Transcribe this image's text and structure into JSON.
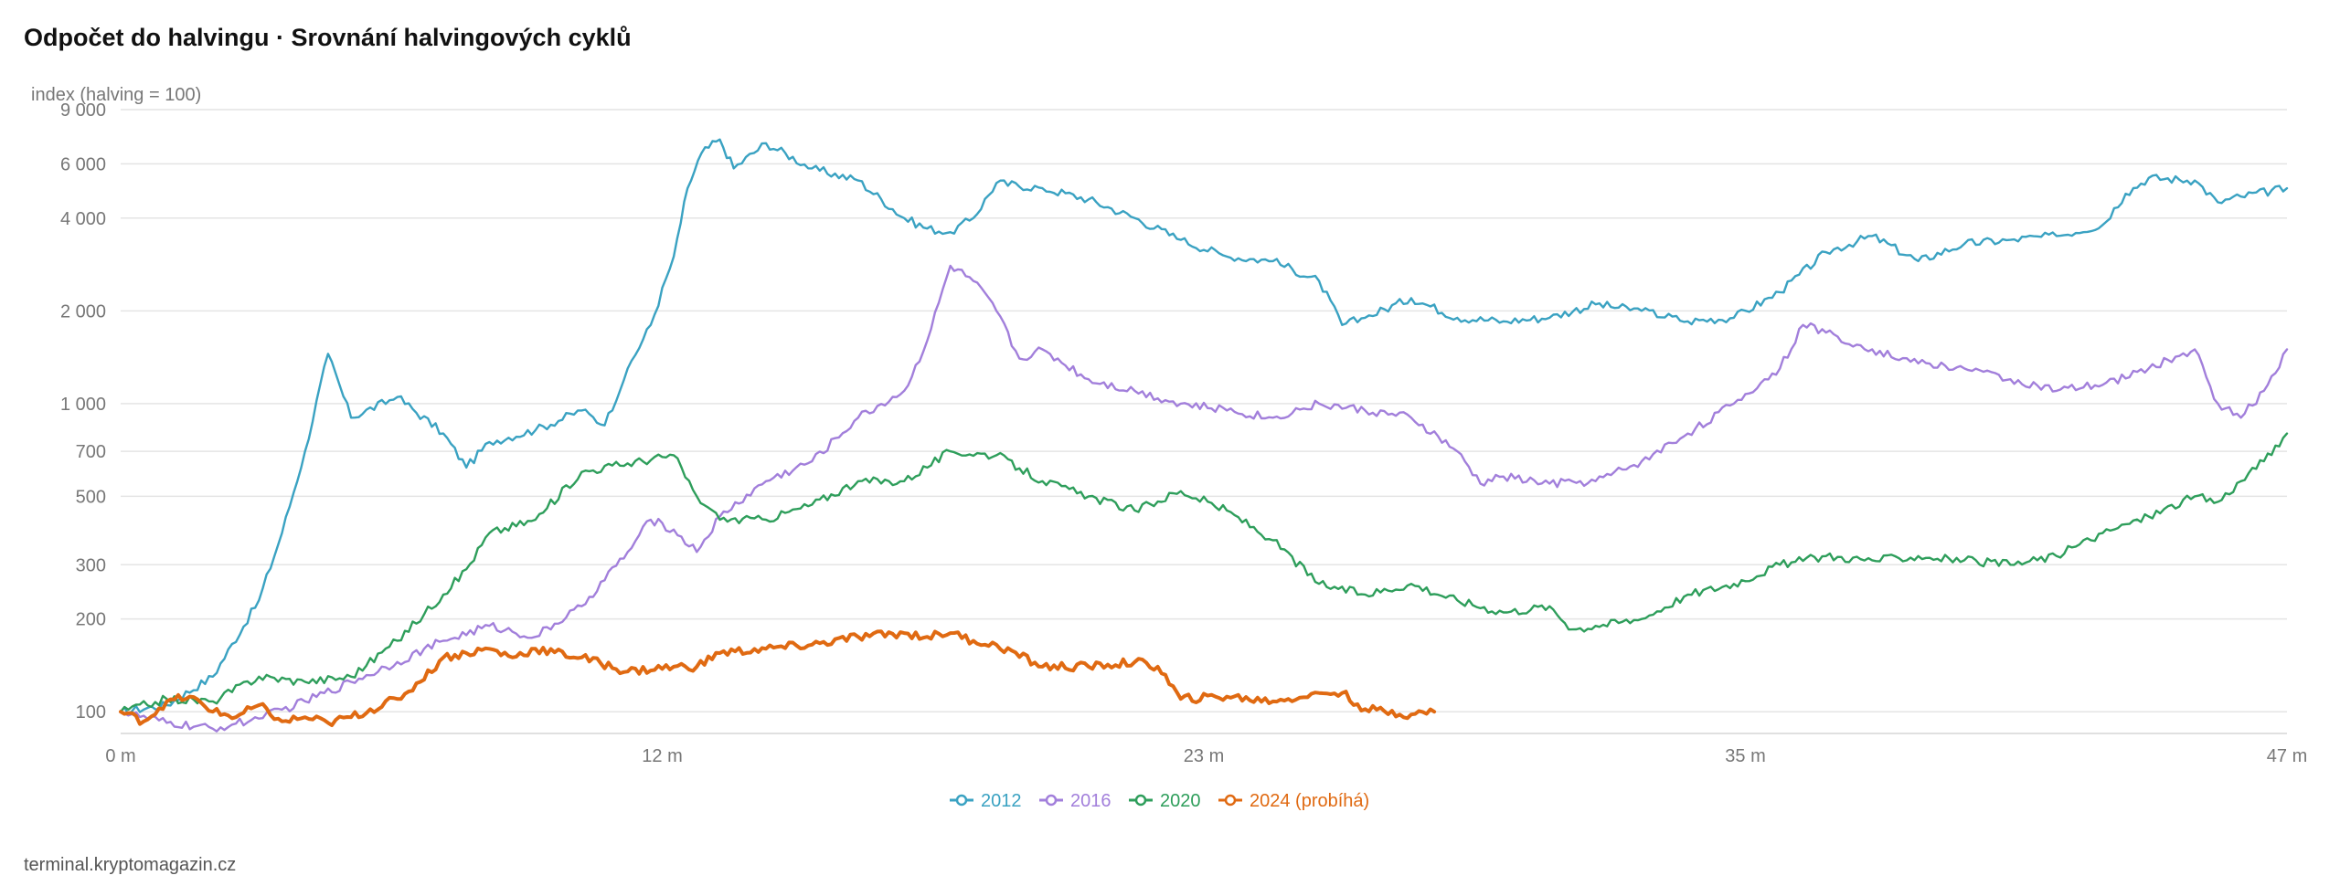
{
  "header": {
    "title": "Odpočet do halvingu · Srovnání halvingových cyklů"
  },
  "footer": {
    "source": "terminal.kryptomagazin.cz"
  },
  "colors": {
    "s2012": "#3aa2c2",
    "s2016": "#a27fdb",
    "s2020": "#2e9e5b",
    "s2024": "#e06a12"
  },
  "chart_data": {
    "type": "line",
    "title": "Odpočet do halvingu · Srovnání halvingových cyklů",
    "ylabel": "index (halving = 100)",
    "xlabel": "",
    "yscale": "log",
    "ylim": [
      85,
      9000
    ],
    "xlim": [
      0,
      47
    ],
    "y_ticks": [
      {
        "value": 9000,
        "label": "9 000"
      },
      {
        "value": 6000,
        "label": "6 000"
      },
      {
        "value": 4000,
        "label": "4 000"
      },
      {
        "value": 2000,
        "label": "2 000"
      },
      {
        "value": 1000,
        "label": "1 000"
      },
      {
        "value": 700,
        "label": "700"
      },
      {
        "value": 500,
        "label": "500"
      },
      {
        "value": 300,
        "label": "300"
      },
      {
        "value": 200,
        "label": "200"
      },
      {
        "value": 100,
        "label": "100"
      }
    ],
    "x_ticks": [
      {
        "value": 0,
        "label": "0 m"
      },
      {
        "value": 11.75,
        "label": "12 m"
      },
      {
        "value": 23.5,
        "label": "23 m"
      },
      {
        "value": 35.25,
        "label": "35 m"
      },
      {
        "value": 47,
        "label": "47 m"
      }
    ],
    "grid": true,
    "legend_position": "bottom-center",
    "series": [
      {
        "name": "2012",
        "color": "#3aa2c2",
        "points": [
          [
            0,
            100
          ],
          [
            1,
            105
          ],
          [
            2,
            130
          ],
          [
            3,
            230
          ],
          [
            3.5,
            380
          ],
          [
            4,
            700
          ],
          [
            4.5,
            1450
          ],
          [
            5,
            900
          ],
          [
            6,
            1050
          ],
          [
            7,
            800
          ],
          [
            7.5,
            620
          ],
          [
            8,
            750
          ],
          [
            9,
            820
          ],
          [
            10,
            950
          ],
          [
            10.5,
            850
          ],
          [
            11,
            1300
          ],
          [
            11.5,
            1800
          ],
          [
            12,
            3000
          ],
          [
            12.3,
            5000
          ],
          [
            12.6,
            6500
          ],
          [
            13,
            7200
          ],
          [
            13.3,
            5800
          ],
          [
            14,
            7000
          ],
          [
            15,
            5800
          ],
          [
            16,
            5300
          ],
          [
            17,
            4000
          ],
          [
            17.5,
            3700
          ],
          [
            18,
            3600
          ],
          [
            18.5,
            4000
          ],
          [
            19,
            5200
          ],
          [
            20,
            5000
          ],
          [
            21,
            4600
          ],
          [
            22,
            4000
          ],
          [
            23,
            3400
          ],
          [
            24,
            3000
          ],
          [
            25,
            2900
          ],
          [
            26,
            2500
          ],
          [
            26.5,
            1800
          ],
          [
            27,
            1900
          ],
          [
            28,
            2200
          ],
          [
            29,
            1900
          ],
          [
            30,
            1850
          ],
          [
            31,
            1900
          ],
          [
            32,
            2100
          ],
          [
            33,
            2000
          ],
          [
            34,
            1850
          ],
          [
            35,
            1900
          ],
          [
            36,
            2300
          ],
          [
            37,
            3100
          ],
          [
            38,
            3500
          ],
          [
            39,
            2900
          ],
          [
            40,
            3300
          ],
          [
            41,
            3400
          ],
          [
            42,
            3500
          ],
          [
            43,
            3800
          ],
          [
            43.5,
            4800
          ],
          [
            44,
            5400
          ],
          [
            45,
            5300
          ],
          [
            45.5,
            4500
          ],
          [
            46,
            4700
          ],
          [
            47,
            5000
          ]
        ]
      },
      {
        "name": "2016",
        "color": "#a27fdb",
        "points": [
          [
            0,
            100
          ],
          [
            1,
            92
          ],
          [
            2,
            88
          ],
          [
            3,
            95
          ],
          [
            4,
            108
          ],
          [
            5,
            125
          ],
          [
            6,
            145
          ],
          [
            7,
            170
          ],
          [
            8,
            190
          ],
          [
            9,
            175
          ],
          [
            10,
            220
          ],
          [
            11,
            330
          ],
          [
            11.5,
            420
          ],
          [
            12,
            390
          ],
          [
            12.5,
            330
          ],
          [
            13,
            430
          ],
          [
            14,
            560
          ],
          [
            15,
            650
          ],
          [
            16,
            900
          ],
          [
            17,
            1100
          ],
          [
            17.5,
            1600
          ],
          [
            18,
            2800
          ],
          [
            18.5,
            2500
          ],
          [
            19,
            2000
          ],
          [
            19.5,
            1400
          ],
          [
            20,
            1500
          ],
          [
            21,
            1200
          ],
          [
            22,
            1100
          ],
          [
            23,
            1000
          ],
          [
            24,
            950
          ],
          [
            25,
            900
          ],
          [
            26,
            1000
          ],
          [
            27,
            950
          ],
          [
            28,
            900
          ],
          [
            29,
            700
          ],
          [
            29.5,
            550
          ],
          [
            30,
            580
          ],
          [
            31,
            550
          ],
          [
            32,
            560
          ],
          [
            33,
            650
          ],
          [
            34,
            800
          ],
          [
            35,
            1000
          ],
          [
            36,
            1300
          ],
          [
            36.5,
            1800
          ],
          [
            37,
            1700
          ],
          [
            38,
            1500
          ],
          [
            39,
            1350
          ],
          [
            40,
            1300
          ],
          [
            41,
            1200
          ],
          [
            42,
            1100
          ],
          [
            43,
            1150
          ],
          [
            44,
            1300
          ],
          [
            45,
            1500
          ],
          [
            45.5,
            1000
          ],
          [
            46,
            900
          ],
          [
            46.5,
            1100
          ],
          [
            47,
            1500
          ]
        ]
      },
      {
        "name": "2020",
        "color": "#2e9e5b",
        "points": [
          [
            0,
            100
          ],
          [
            1,
            110
          ],
          [
            2,
            108
          ],
          [
            3,
            130
          ],
          [
            4,
            125
          ],
          [
            5,
            130
          ],
          [
            6,
            170
          ],
          [
            7,
            240
          ],
          [
            7.5,
            290
          ],
          [
            8,
            380
          ],
          [
            9,
            420
          ],
          [
            10,
            600
          ],
          [
            11,
            640
          ],
          [
            12,
            680
          ],
          [
            12.5,
            500
          ],
          [
            13,
            420
          ],
          [
            14,
            420
          ],
          [
            15,
            470
          ],
          [
            16,
            560
          ],
          [
            17,
            560
          ],
          [
            18,
            700
          ],
          [
            19,
            680
          ],
          [
            20,
            560
          ],
          [
            21,
            500
          ],
          [
            22,
            450
          ],
          [
            23,
            520
          ],
          [
            24,
            450
          ],
          [
            25,
            360
          ],
          [
            26,
            260
          ],
          [
            27,
            240
          ],
          [
            28,
            260
          ],
          [
            29,
            230
          ],
          [
            30,
            210
          ],
          [
            31,
            220
          ],
          [
            31.5,
            185
          ],
          [
            32,
            190
          ],
          [
            33,
            200
          ],
          [
            34,
            240
          ],
          [
            35,
            260
          ],
          [
            36,
            300
          ],
          [
            37,
            320
          ],
          [
            38,
            310
          ],
          [
            39,
            320
          ],
          [
            40,
            310
          ],
          [
            41,
            300
          ],
          [
            42,
            320
          ],
          [
            43,
            380
          ],
          [
            44,
            430
          ],
          [
            45,
            500
          ],
          [
            45.5,
            480
          ],
          [
            46,
            560
          ],
          [
            46.5,
            650
          ],
          [
            47,
            800
          ]
        ]
      },
      {
        "name": "2024 (probíhá)",
        "color": "#e06a12",
        "bold": true,
        "points": [
          [
            0,
            100
          ],
          [
            0.5,
            93
          ],
          [
            1,
            108
          ],
          [
            1.5,
            112
          ],
          [
            2,
            100
          ],
          [
            2.5,
            96
          ],
          [
            3,
            105
          ],
          [
            3.5,
            93
          ],
          [
            4,
            96
          ],
          [
            4.5,
            92
          ],
          [
            5,
            96
          ],
          [
            6,
            110
          ],
          [
            6.5,
            125
          ],
          [
            7,
            150
          ],
          [
            7.5,
            155
          ],
          [
            8,
            160
          ],
          [
            8.5,
            150
          ],
          [
            9,
            160
          ],
          [
            10,
            150
          ],
          [
            11,
            135
          ],
          [
            12,
            140
          ],
          [
            12.5,
            140
          ],
          [
            13,
            155
          ],
          [
            14,
            160
          ],
          [
            15,
            165
          ],
          [
            16,
            175
          ],
          [
            17,
            180
          ],
          [
            17.5,
            175
          ],
          [
            18,
            180
          ],
          [
            18.5,
            170
          ],
          [
            19,
            165
          ],
          [
            20,
            140
          ],
          [
            21,
            140
          ],
          [
            22,
            145
          ],
          [
            22.5,
            140
          ],
          [
            23,
            110
          ],
          [
            24,
            112
          ],
          [
            25,
            108
          ],
          [
            26,
            115
          ],
          [
            26.5,
            115
          ],
          [
            27,
            102
          ],
          [
            28,
            98
          ],
          [
            28.5,
            100
          ]
        ]
      }
    ]
  }
}
